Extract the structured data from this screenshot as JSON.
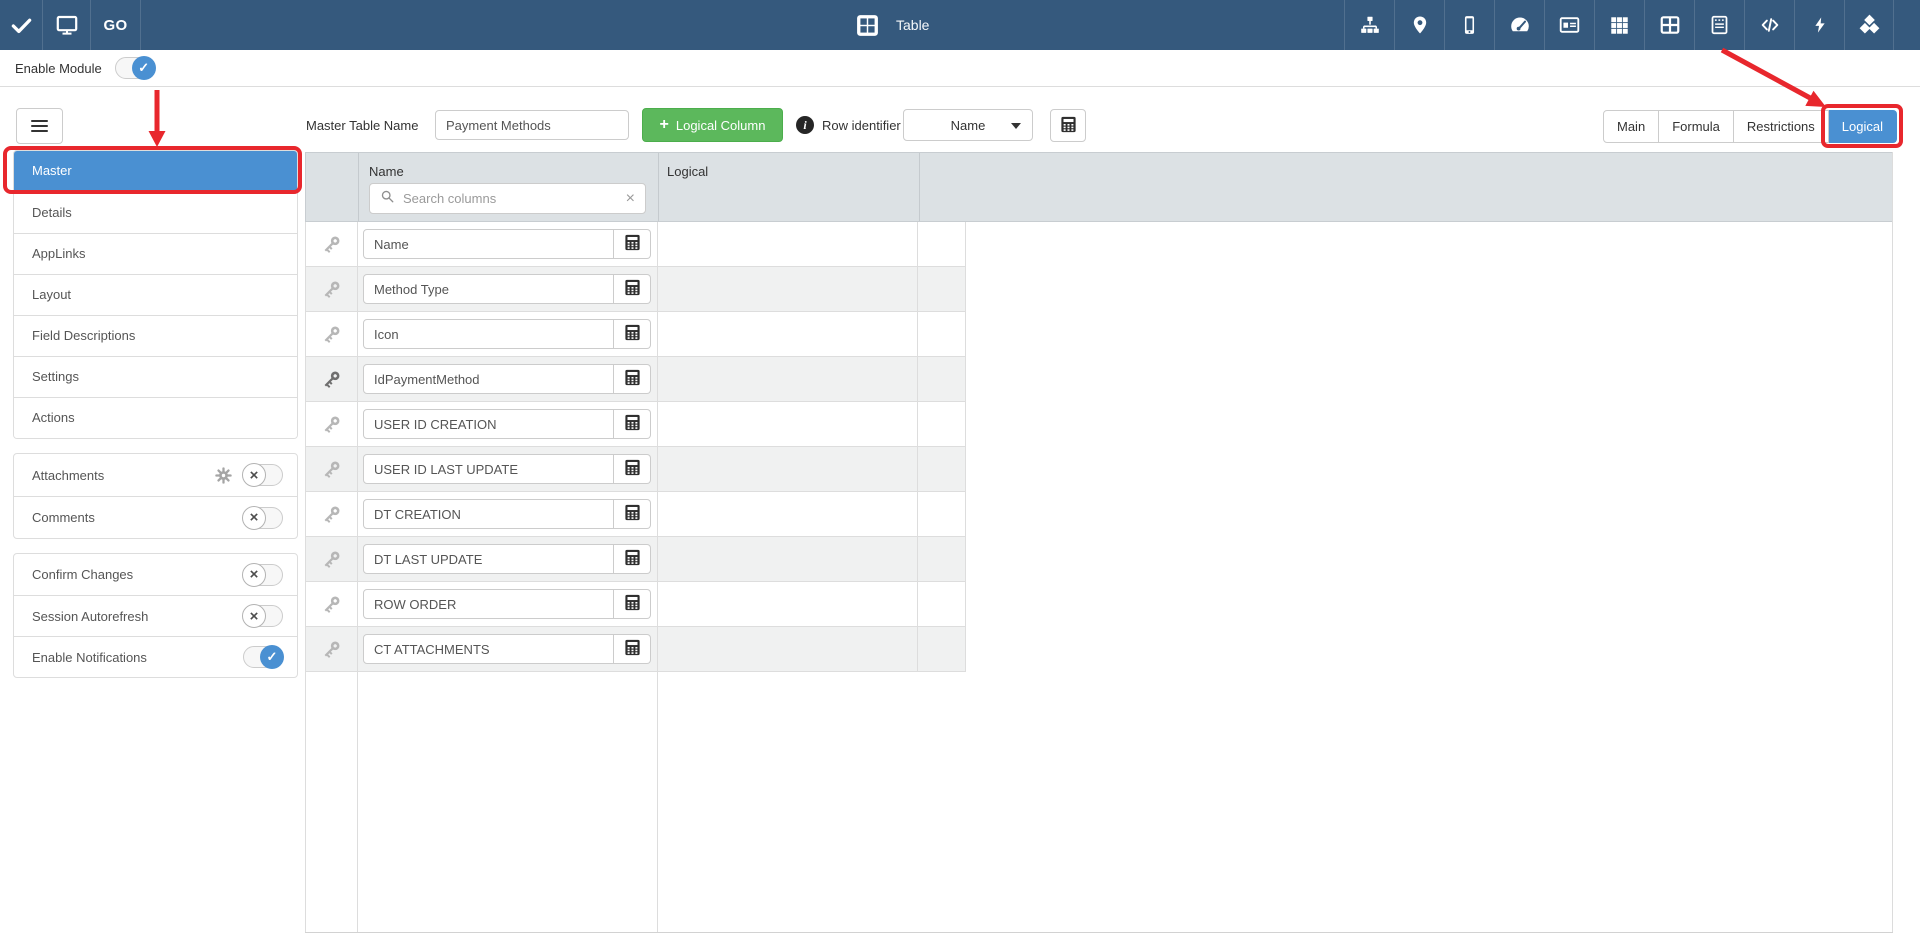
{
  "topbar": {
    "go_label": "GO",
    "title_label": "Table",
    "right_icons": [
      "sitemap-icon",
      "map-marker-icon",
      "mobile-icon",
      "dashboard-icon",
      "id-card-icon",
      "grid-icon",
      "table-grid-icon",
      "notes-icon",
      "code-icon",
      "bolt-icon",
      "cubes-icon"
    ]
  },
  "module_bar": {
    "label": "Enable Module",
    "enabled": true
  },
  "sidebar": {
    "nav_items": [
      {
        "label": "Master",
        "active": true
      },
      {
        "label": "Details",
        "active": false
      },
      {
        "label": "AppLinks",
        "active": false
      },
      {
        "label": "Layout",
        "active": false
      },
      {
        "label": "Field Descriptions",
        "active": false
      },
      {
        "label": "Settings",
        "active": false
      },
      {
        "label": "Actions",
        "active": false
      }
    ],
    "feature_toggles": [
      {
        "label": "Attachments",
        "enabled": false,
        "has_settings": true
      },
      {
        "label": "Comments",
        "enabled": false,
        "has_settings": false
      }
    ],
    "option_toggles": [
      {
        "label": "Confirm Changes",
        "enabled": false
      },
      {
        "label": "Session Autorefresh",
        "enabled": false
      },
      {
        "label": "Enable Notifications",
        "enabled": true
      }
    ]
  },
  "toolbar": {
    "table_name_label": "Master Table Name",
    "table_name_value": "Payment Methods",
    "add_button_plus": "+",
    "add_button_label": "Logical Column",
    "info_glyph": "i",
    "row_identifier_label": "Row identifier",
    "row_identifier_value": "Name",
    "tabs": [
      {
        "label": "Main",
        "active": false
      },
      {
        "label": "Formula",
        "active": false
      },
      {
        "label": "Restrictions",
        "active": false
      },
      {
        "label": "Logical",
        "active": true
      }
    ]
  },
  "table": {
    "name_column_header": "Name",
    "logical_column_header": "Logical",
    "search_placeholder": "Search columns",
    "search_clear_glyph": "×",
    "rows": [
      {
        "name": "Name",
        "primary": false
      },
      {
        "name": "Method Type",
        "primary": false
      },
      {
        "name": "Icon",
        "primary": false
      },
      {
        "name": "IdPaymentMethod",
        "primary": true
      },
      {
        "name": "USER ID CREATION",
        "primary": false
      },
      {
        "name": "USER ID LAST UPDATE",
        "primary": false
      },
      {
        "name": "DT CREATION",
        "primary": false
      },
      {
        "name": "DT LAST UPDATE",
        "primary": false
      },
      {
        "name": "ROW ORDER",
        "primary": false
      },
      {
        "name": "CT ATTACHMENTS",
        "primary": false
      }
    ]
  },
  "toggle_glyphs": {
    "on": "✓",
    "off": "×"
  },
  "colors": {
    "topbar": "#35597d",
    "accent_blue": "#4a90d2",
    "success_green": "#5cb85c",
    "annotation_red": "#e8272d",
    "header_gray": "#dce1e4"
  }
}
